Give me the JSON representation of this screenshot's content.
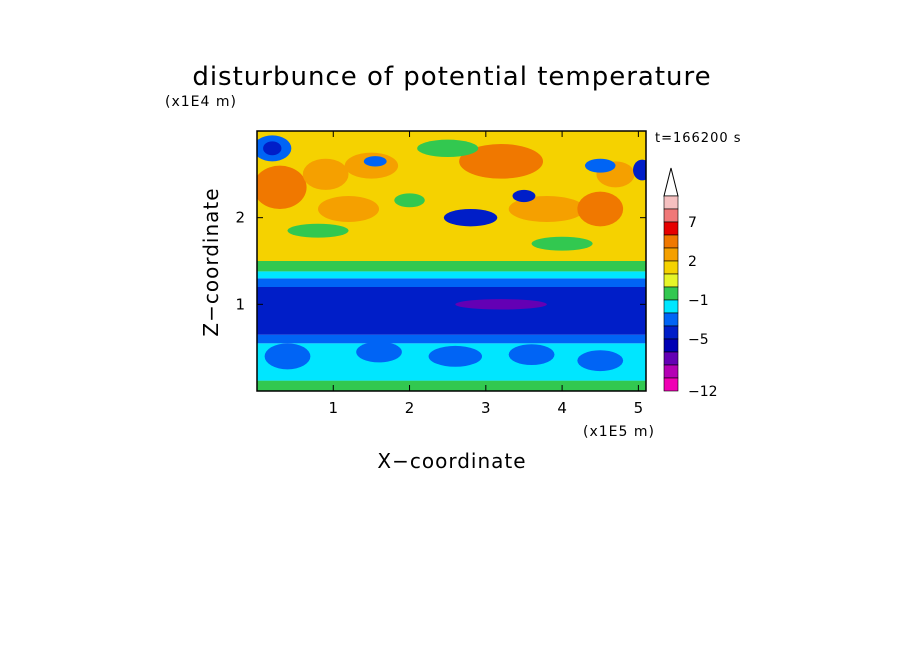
{
  "chart_data": {
    "type": "heatmap",
    "title": "disturbunce of potential temperature",
    "time_label": "t=166200 s",
    "x_axis": {
      "label": "X−coordinate",
      "unit": "(x1E5 m)",
      "ticks": [
        "1",
        "2",
        "3",
        "4",
        "5"
      ],
      "range": [
        0,
        5.1
      ]
    },
    "y_axis": {
      "label": "Z−coordinate",
      "unit": "(x1E4 m)",
      "ticks": [
        "1",
        "2"
      ],
      "range": [
        0,
        3.0
      ]
    },
    "colorbar": {
      "tick_labels": [
        "7",
        "2",
        "−1",
        "−5",
        "−12"
      ],
      "colors_top_to_bottom": [
        "#f5c0c0",
        "#f07878",
        "#e60000",
        "#f07800",
        "#f5a000",
        "#f5d200",
        "#e6f528",
        "#32c850",
        "#00e6ff",
        "#0064f5",
        "#001ec8",
        "#0000b4",
        "#6400b4",
        "#b400b4",
        "#f000b4"
      ],
      "extend_top": true
    },
    "layers": [
      {
        "z_range": [
          0.0,
          0.12
        ],
        "value": "-1",
        "color": "#32c850"
      },
      {
        "z_range": [
          0.12,
          0.55
        ],
        "value": "-2",
        "color": "#00e6ff"
      },
      {
        "z_range": [
          0.55,
          0.65
        ],
        "value": "-4",
        "color": "#0064f5"
      },
      {
        "z_range": [
          0.65,
          1.2
        ],
        "value": "-5",
        "color": "#001ec8"
      },
      {
        "z_range": [
          1.2,
          1.3
        ],
        "value": "-4",
        "color": "#0064f5"
      },
      {
        "z_range": [
          1.3,
          1.38
        ],
        "value": "-2",
        "color": "#00e6ff"
      },
      {
        "z_range": [
          1.38,
          1.5
        ],
        "value": "-1",
        "color": "#32c850"
      },
      {
        "z_range": [
          1.5,
          3.0
        ],
        "value": "1",
        "color": "#f5d200"
      }
    ],
    "blobs": [
      {
        "x": 0.2,
        "z": 2.8,
        "rx": 0.25,
        "rz": 0.15,
        "color": "#0064f5"
      },
      {
        "x": 0.2,
        "z": 2.8,
        "rx": 0.12,
        "rz": 0.08,
        "color": "#001ec8"
      },
      {
        "x": 0.3,
        "z": 2.35,
        "rx": 0.35,
        "rz": 0.25,
        "color": "#f07800"
      },
      {
        "x": 0.9,
        "z": 2.5,
        "rx": 0.3,
        "rz": 0.18,
        "color": "#f5a000"
      },
      {
        "x": 1.5,
        "z": 2.6,
        "rx": 0.35,
        "rz": 0.15,
        "color": "#f5a000"
      },
      {
        "x": 1.2,
        "z": 2.1,
        "rx": 0.4,
        "rz": 0.15,
        "color": "#f5a000"
      },
      {
        "x": 3.2,
        "z": 2.65,
        "rx": 0.55,
        "rz": 0.2,
        "color": "#f07800"
      },
      {
        "x": 3.8,
        "z": 2.1,
        "rx": 0.5,
        "rz": 0.15,
        "color": "#f5a000"
      },
      {
        "x": 4.5,
        "z": 2.1,
        "rx": 0.3,
        "rz": 0.2,
        "color": "#f07800"
      },
      {
        "x": 4.7,
        "z": 2.5,
        "rx": 0.25,
        "rz": 0.15,
        "color": "#f5a000"
      },
      {
        "x": 2.8,
        "z": 2.0,
        "rx": 0.35,
        "rz": 0.1,
        "color": "#001ec8"
      },
      {
        "x": 3.5,
        "z": 2.25,
        "rx": 0.15,
        "rz": 0.07,
        "color": "#001ec8"
      },
      {
        "x": 1.55,
        "z": 2.65,
        "rx": 0.15,
        "rz": 0.06,
        "color": "#0064f5"
      },
      {
        "x": 4.5,
        "z": 2.6,
        "rx": 0.2,
        "rz": 0.08,
        "color": "#0064f5"
      },
      {
        "x": 5.05,
        "z": 2.55,
        "rx": 0.12,
        "rz": 0.12,
        "color": "#001ec8"
      },
      {
        "x": 2.0,
        "z": 2.2,
        "rx": 0.2,
        "rz": 0.08,
        "color": "#32c850"
      },
      {
        "x": 2.5,
        "z": 2.8,
        "rx": 0.4,
        "rz": 0.1,
        "color": "#32c850"
      },
      {
        "x": 0.8,
        "z": 1.85,
        "rx": 0.4,
        "rz": 0.08,
        "color": "#32c850"
      },
      {
        "x": 4.0,
        "z": 1.7,
        "rx": 0.4,
        "rz": 0.08,
        "color": "#32c850"
      },
      {
        "x": 3.2,
        "z": 1.0,
        "rx": 0.6,
        "rz": 0.06,
        "color": "#6400b4"
      },
      {
        "x": 0.4,
        "z": 0.4,
        "rx": 0.3,
        "rz": 0.15,
        "color": "#0064f5"
      },
      {
        "x": 1.6,
        "z": 0.45,
        "rx": 0.3,
        "rz": 0.12,
        "color": "#0064f5"
      },
      {
        "x": 2.6,
        "z": 0.4,
        "rx": 0.35,
        "rz": 0.12,
        "color": "#0064f5"
      },
      {
        "x": 3.6,
        "z": 0.42,
        "rx": 0.3,
        "rz": 0.12,
        "color": "#0064f5"
      },
      {
        "x": 4.5,
        "z": 0.35,
        "rx": 0.3,
        "rz": 0.12,
        "color": "#0064f5"
      }
    ]
  }
}
